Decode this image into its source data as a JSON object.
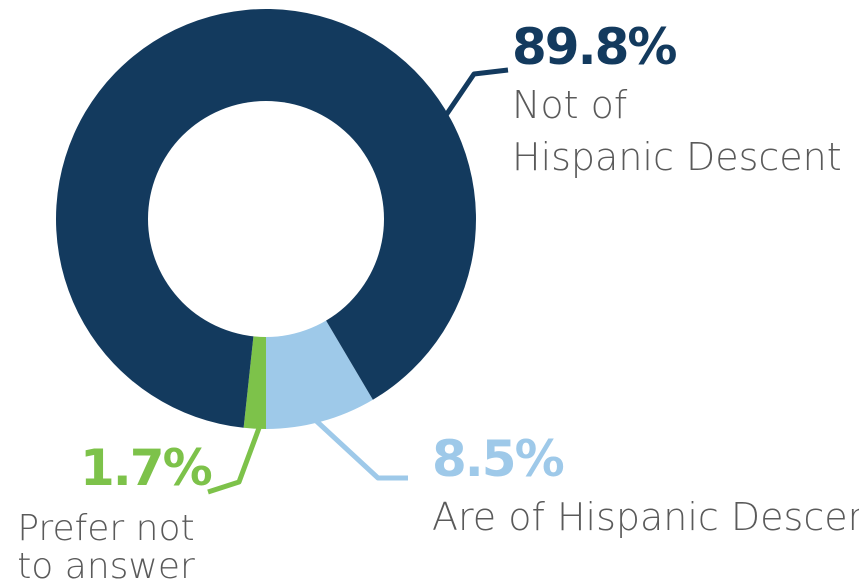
{
  "chart_data": {
    "type": "pie",
    "variant": "donut",
    "categories": [
      "Not of Hispanic Descent",
      "Are of Hispanic Descent",
      "Prefer not to answer"
    ],
    "values": [
      89.8,
      8.5,
      1.7
    ],
    "value_labels": [
      "89.8%",
      "8.5%",
      "1.7%"
    ],
    "label_lines": [
      [
        "Not of",
        "Hispanic Descent"
      ],
      [
        "Are of Hispanic Descent"
      ],
      [
        "Prefer not",
        "to answer"
      ]
    ],
    "colors": [
      "#133a5e",
      "#9ec9e9",
      "#7dc24a"
    ],
    "label_placement": "outside with leader lines"
  }
}
